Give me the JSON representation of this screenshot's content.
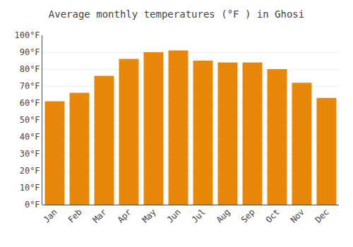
{
  "chart_data": {
    "type": "bar",
    "title": "Average monthly temperatures (°F ) in Ghosi",
    "categories": [
      "Jan",
      "Feb",
      "Mar",
      "Apr",
      "May",
      "Jun",
      "Jul",
      "Aug",
      "Sep",
      "Oct",
      "Nov",
      "Dec"
    ],
    "values": [
      61,
      66,
      76,
      86,
      90,
      91,
      85,
      84,
      84,
      80,
      72,
      63
    ],
    "color": "#E8880A",
    "ylim": [
      0,
      100
    ],
    "yticks": [
      {
        "value": 0,
        "label": "0°F"
      },
      {
        "value": 10,
        "label": "10°F"
      },
      {
        "value": 20,
        "label": "20°F"
      },
      {
        "value": 30,
        "label": "30°F"
      },
      {
        "value": 40,
        "label": "40°F"
      },
      {
        "value": 50,
        "label": "50°F"
      },
      {
        "value": 60,
        "label": "60°F"
      },
      {
        "value": 70,
        "label": "70°F"
      },
      {
        "value": 80,
        "label": "80°F"
      },
      {
        "value": 90,
        "label": "90°F"
      },
      {
        "value": 100,
        "label": "100°F"
      }
    ],
    "grid": true
  }
}
